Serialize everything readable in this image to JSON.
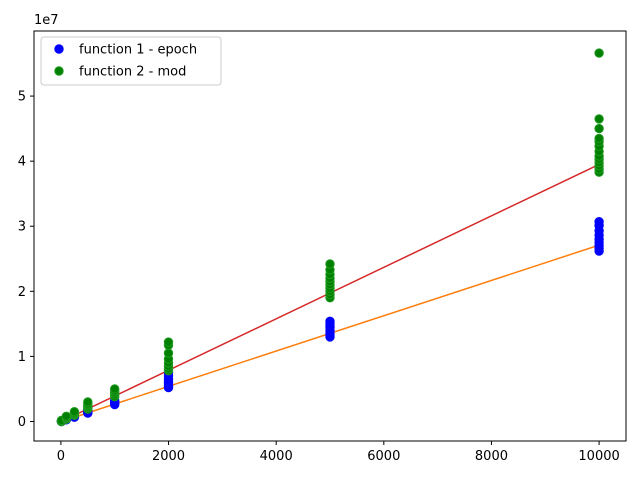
{
  "chart_data": {
    "type": "scatter",
    "title": "",
    "xlabel": "",
    "ylabel": "",
    "y_offset_label": "1e7",
    "xlim": [
      -500,
      10500
    ],
    "ylim": [
      -3000000,
      60000000
    ],
    "x_ticks": [
      0,
      2000,
      4000,
      6000,
      8000,
      10000
    ],
    "x_tick_labels": [
      "0",
      "2000",
      "4000",
      "6000",
      "8000",
      "10000"
    ],
    "y_ticks": [
      0,
      10000000,
      20000000,
      30000000,
      40000000,
      50000000
    ],
    "y_tick_labels": [
      "0",
      "1",
      "2",
      "3",
      "4",
      "5"
    ],
    "grid": false,
    "legend": {
      "placement": "top-left"
    },
    "series": [
      {
        "name": "function 1 - epoch",
        "color": "#0000ff",
        "edge_color": "#0000ff",
        "points": [
          [
            10,
            0
          ],
          [
            10,
            50000
          ],
          [
            10,
            90000
          ],
          [
            100,
            250000
          ],
          [
            100,
            300000
          ],
          [
            250,
            650000
          ],
          [
            250,
            700000
          ],
          [
            250,
            750000
          ],
          [
            250,
            800000
          ],
          [
            500,
            1300000
          ],
          [
            500,
            1400000
          ],
          [
            500,
            1500000
          ],
          [
            500,
            1600000
          ],
          [
            500,
            1800000
          ],
          [
            1000,
            2600000
          ],
          [
            1000,
            2800000
          ],
          [
            1000,
            3000000
          ],
          [
            1000,
            3200000
          ],
          [
            2000,
            5200000
          ],
          [
            2000,
            5500000
          ],
          [
            2000,
            5800000
          ],
          [
            2000,
            6100000
          ],
          [
            2000,
            6500000
          ],
          [
            2000,
            7000000
          ],
          [
            2000,
            7500000
          ],
          [
            5000,
            13000000
          ],
          [
            5000,
            13300000
          ],
          [
            5000,
            13600000
          ],
          [
            5000,
            14000000
          ],
          [
            5000,
            14500000
          ],
          [
            5000,
            15000000
          ],
          [
            5000,
            15400000
          ],
          [
            10000,
            26200000
          ],
          [
            10000,
            26600000
          ],
          [
            10000,
            27000000
          ],
          [
            10000,
            27500000
          ],
          [
            10000,
            28000000
          ],
          [
            10000,
            28600000
          ],
          [
            10000,
            29300000
          ],
          [
            10000,
            30100000
          ],
          [
            10000,
            30700000
          ]
        ]
      },
      {
        "name": "function 2 - mod",
        "color": "#008000",
        "edge_color": "#1f9a1f",
        "points": [
          [
            10,
            0
          ],
          [
            10,
            80000
          ],
          [
            10,
            150000
          ],
          [
            100,
            350000
          ],
          [
            100,
            450000
          ],
          [
            100,
            600000
          ],
          [
            100,
            800000
          ],
          [
            250,
            950000
          ],
          [
            250,
            1100000
          ],
          [
            250,
            1300000
          ],
          [
            250,
            1500000
          ],
          [
            500,
            1900000
          ],
          [
            500,
            2100000
          ],
          [
            500,
            2300000
          ],
          [
            500,
            2500000
          ],
          [
            500,
            2700000
          ],
          [
            500,
            3000000
          ],
          [
            1000,
            3800000
          ],
          [
            1000,
            4100000
          ],
          [
            1000,
            4400000
          ],
          [
            1000,
            4700000
          ],
          [
            1000,
            5000000
          ],
          [
            2000,
            7800000
          ],
          [
            2000,
            8100000
          ],
          [
            2000,
            8500000
          ],
          [
            2000,
            9000000
          ],
          [
            2000,
            9600000
          ],
          [
            2000,
            10500000
          ],
          [
            2000,
            11700000
          ],
          [
            2000,
            12200000
          ],
          [
            5000,
            19000000
          ],
          [
            5000,
            19500000
          ],
          [
            5000,
            20000000
          ],
          [
            5000,
            20500000
          ],
          [
            5000,
            21000000
          ],
          [
            5000,
            21500000
          ],
          [
            5000,
            22000000
          ],
          [
            5000,
            22600000
          ],
          [
            5000,
            23300000
          ],
          [
            5000,
            24200000
          ],
          [
            10000,
            38300000
          ],
          [
            10000,
            38800000
          ],
          [
            10000,
            39300000
          ],
          [
            10000,
            39800000
          ],
          [
            10000,
            40300000
          ],
          [
            10000,
            40800000
          ],
          [
            10000,
            41500000
          ],
          [
            10000,
            42300000
          ],
          [
            10000,
            43000000
          ],
          [
            10000,
            43500000
          ],
          [
            10000,
            45000000
          ],
          [
            10000,
            46500000
          ],
          [
            10000,
            56600000
          ]
        ]
      }
    ],
    "fit_lines": [
      {
        "color": "#ff7f0e",
        "points": [
          [
            10,
            0
          ],
          [
            10000,
            27100000
          ]
        ]
      },
      {
        "color": "#d62728",
        "points": [
          [
            10,
            0
          ],
          [
            10000,
            39500000
          ]
        ]
      }
    ]
  }
}
